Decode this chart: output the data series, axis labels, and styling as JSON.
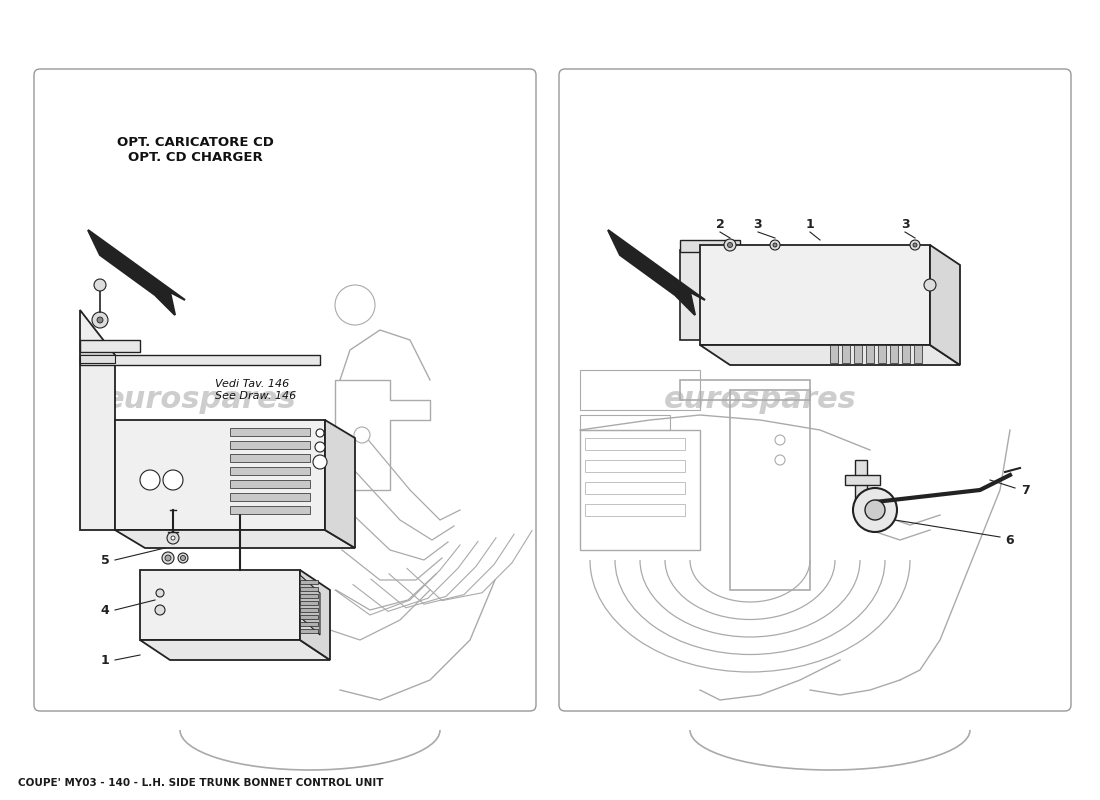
{
  "title": "COUPE' MY03 - 140 - L.H. SIDE TRUNK BONNET CONTROL UNIT",
  "title_fontsize": 7.5,
  "title_color": "#1a1a1a",
  "background_color": "#ffffff",
  "watermark_text": "eurospares",
  "watermark_color": "#c8c8c8",
  "watermark_fontsize": 22,
  "panel1_label": "OPT. CARICATORE CD\nOPT. CD CHARGER",
  "panel1_label_fontsize": 9.5,
  "see_draw_text": "Vedi Tav. 146\nSee Draw. 146",
  "line_color": "#222222",
  "bg_line_color": "#aaaaaa",
  "panel_edge_color": "#999999",
  "panel_face_color": "#ffffff"
}
